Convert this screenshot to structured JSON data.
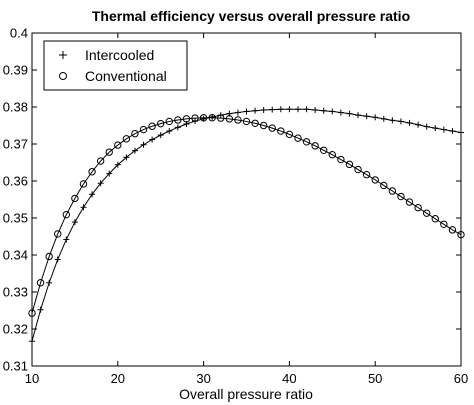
{
  "chart_data": {
    "type": "line",
    "title": "Thermal efficiency versus overall pressure ratio",
    "xlabel": "Overall pressure ratio",
    "ylabel": "",
    "xlim": [
      10,
      60
    ],
    "ylim": [
      0.31,
      0.4
    ],
    "xticks": [
      10,
      20,
      30,
      40,
      50,
      60
    ],
    "yticks": [
      0.31,
      0.32,
      0.33,
      0.34,
      0.35,
      0.36,
      0.37,
      0.38,
      0.39,
      0.4
    ],
    "xtick_labels": [
      "10",
      "20",
      "30",
      "40",
      "50",
      "60"
    ],
    "ytick_labels": [
      "0.31",
      "0.32",
      "0.33",
      "0.34",
      "0.35",
      "0.36",
      "0.37",
      "0.38",
      "0.39",
      "0.4"
    ],
    "grid": false,
    "legend_position": "top-left",
    "x": [
      10,
      11,
      12,
      13,
      14,
      15,
      16,
      17,
      18,
      19,
      20,
      21,
      22,
      23,
      24,
      25,
      26,
      27,
      28,
      29,
      30,
      31,
      32,
      33,
      34,
      35,
      36,
      37,
      38,
      39,
      40,
      41,
      42,
      43,
      44,
      45,
      46,
      47,
      48,
      49,
      50,
      51,
      52,
      53,
      54,
      55,
      56,
      57,
      58,
      59,
      60
    ],
    "series": [
      {
        "name": "Intercooled",
        "marker": "plus",
        "color": "#000000",
        "values": [
          0.3167,
          0.3252,
          0.3325,
          0.3388,
          0.3442,
          0.3489,
          0.3529,
          0.3564,
          0.3594,
          0.362,
          0.3644,
          0.3664,
          0.3682,
          0.3698,
          0.3712,
          0.3724,
          0.3735,
          0.3745,
          0.3754,
          0.3762,
          0.3768,
          0.3773,
          0.3778,
          0.3782,
          0.3785,
          0.3788,
          0.379,
          0.3792,
          0.3793,
          0.3794,
          0.3794,
          0.3794,
          0.3794,
          0.3792,
          0.379,
          0.3788,
          0.3785,
          0.3782,
          0.3778,
          0.3775,
          0.3772,
          0.3768,
          0.3764,
          0.3761,
          0.3757,
          0.3752,
          0.3747,
          0.3743,
          0.3739,
          0.3735,
          0.3731
        ]
      },
      {
        "name": "Conventional",
        "marker": "circle",
        "color": "#000000",
        "values": [
          0.3243,
          0.3325,
          0.3396,
          0.3457,
          0.3509,
          0.3553,
          0.3592,
          0.3625,
          0.3654,
          0.3678,
          0.3697,
          0.3714,
          0.3728,
          0.3739,
          0.3748,
          0.3755,
          0.3761,
          0.3765,
          0.3768,
          0.377,
          0.3771,
          0.3771,
          0.377,
          0.3768,
          0.3765,
          0.3761,
          0.3756,
          0.375,
          0.3743,
          0.3735,
          0.3726,
          0.3716,
          0.3706,
          0.3695,
          0.3683,
          0.3671,
          0.3658,
          0.3645,
          0.3631,
          0.3617,
          0.3603,
          0.3588,
          0.3573,
          0.3558,
          0.3543,
          0.3528,
          0.3513,
          0.3498,
          0.3483,
          0.3468,
          0.3455
        ]
      }
    ]
  }
}
